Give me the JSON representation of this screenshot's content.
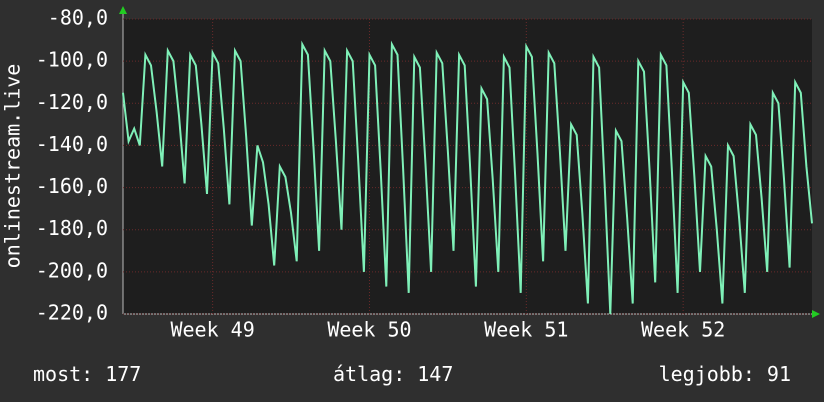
{
  "chart_data": {
    "type": "line",
    "ylabel": "onlinestream.live",
    "series": [
      {
        "name": "onlinestream.live",
        "color": "#7ff0b8",
        "values": [
          -115,
          -138,
          -132,
          -140,
          -97,
          -102,
          -124,
          -150,
          -95,
          -100,
          -126,
          -158,
          -97,
          -102,
          -130,
          -163,
          -96,
          -101,
          -132,
          -168,
          -95,
          -100,
          -136,
          -178,
          -140,
          -148,
          -168,
          -197,
          -150,
          -155,
          -172,
          -195,
          -92,
          -97,
          -141,
          -190,
          -95,
          -100,
          -138,
          -180,
          -95,
          -100,
          -148,
          -200,
          -97,
          -102,
          -152,
          -207,
          -92,
          -97,
          -151,
          -210,
          -98,
          -103,
          -149,
          -200,
          -96,
          -101,
          -143,
          -190,
          -97,
          -102,
          -152,
          -207,
          -113,
          -118,
          -156,
          -200,
          -98,
          -103,
          -154,
          -210,
          -93,
          -98,
          -144,
          -195,
          -96,
          -101,
          -143,
          -190,
          -130,
          -135,
          -172,
          -215,
          -98,
          -103,
          -159,
          -220,
          -133,
          -138,
          -174,
          -215,
          -100,
          -105,
          -152,
          -205,
          -97,
          -102,
          -153,
          -210,
          -110,
          -115,
          -155,
          -200,
          -145,
          -150,
          -180,
          -215,
          -140,
          -145,
          -175,
          -210,
          -130,
          -135,
          -165,
          -200,
          -115,
          -120,
          -156,
          -198,
          -110,
          -115,
          -150,
          -177
        ]
      }
    ],
    "xlim": [
      0,
      123
    ],
    "xticks": [
      {
        "value": 16,
        "label": "Week 49"
      },
      {
        "value": 44,
        "label": "Week 50"
      },
      {
        "value": 72,
        "label": "Week 51"
      },
      {
        "value": 100,
        "label": "Week 52"
      }
    ],
    "ylim": [
      -220,
      -80
    ],
    "yticks": [
      {
        "value": -80,
        "label": "-80,0"
      },
      {
        "value": -100,
        "label": "-100,0"
      },
      {
        "value": -120,
        "label": "-120,0"
      },
      {
        "value": -140,
        "label": "-140,0"
      },
      {
        "value": -160,
        "label": "-160,0"
      },
      {
        "value": -180,
        "label": "-180,0"
      },
      {
        "value": -200,
        "label": "-200,0"
      },
      {
        "value": -220,
        "label": "-220,0"
      }
    ],
    "grid": true,
    "stats": [
      {
        "label": "most:",
        "value": 177
      },
      {
        "label": "átlag:",
        "value": 147
      },
      {
        "label": "legjobb:",
        "value": 91
      }
    ]
  }
}
